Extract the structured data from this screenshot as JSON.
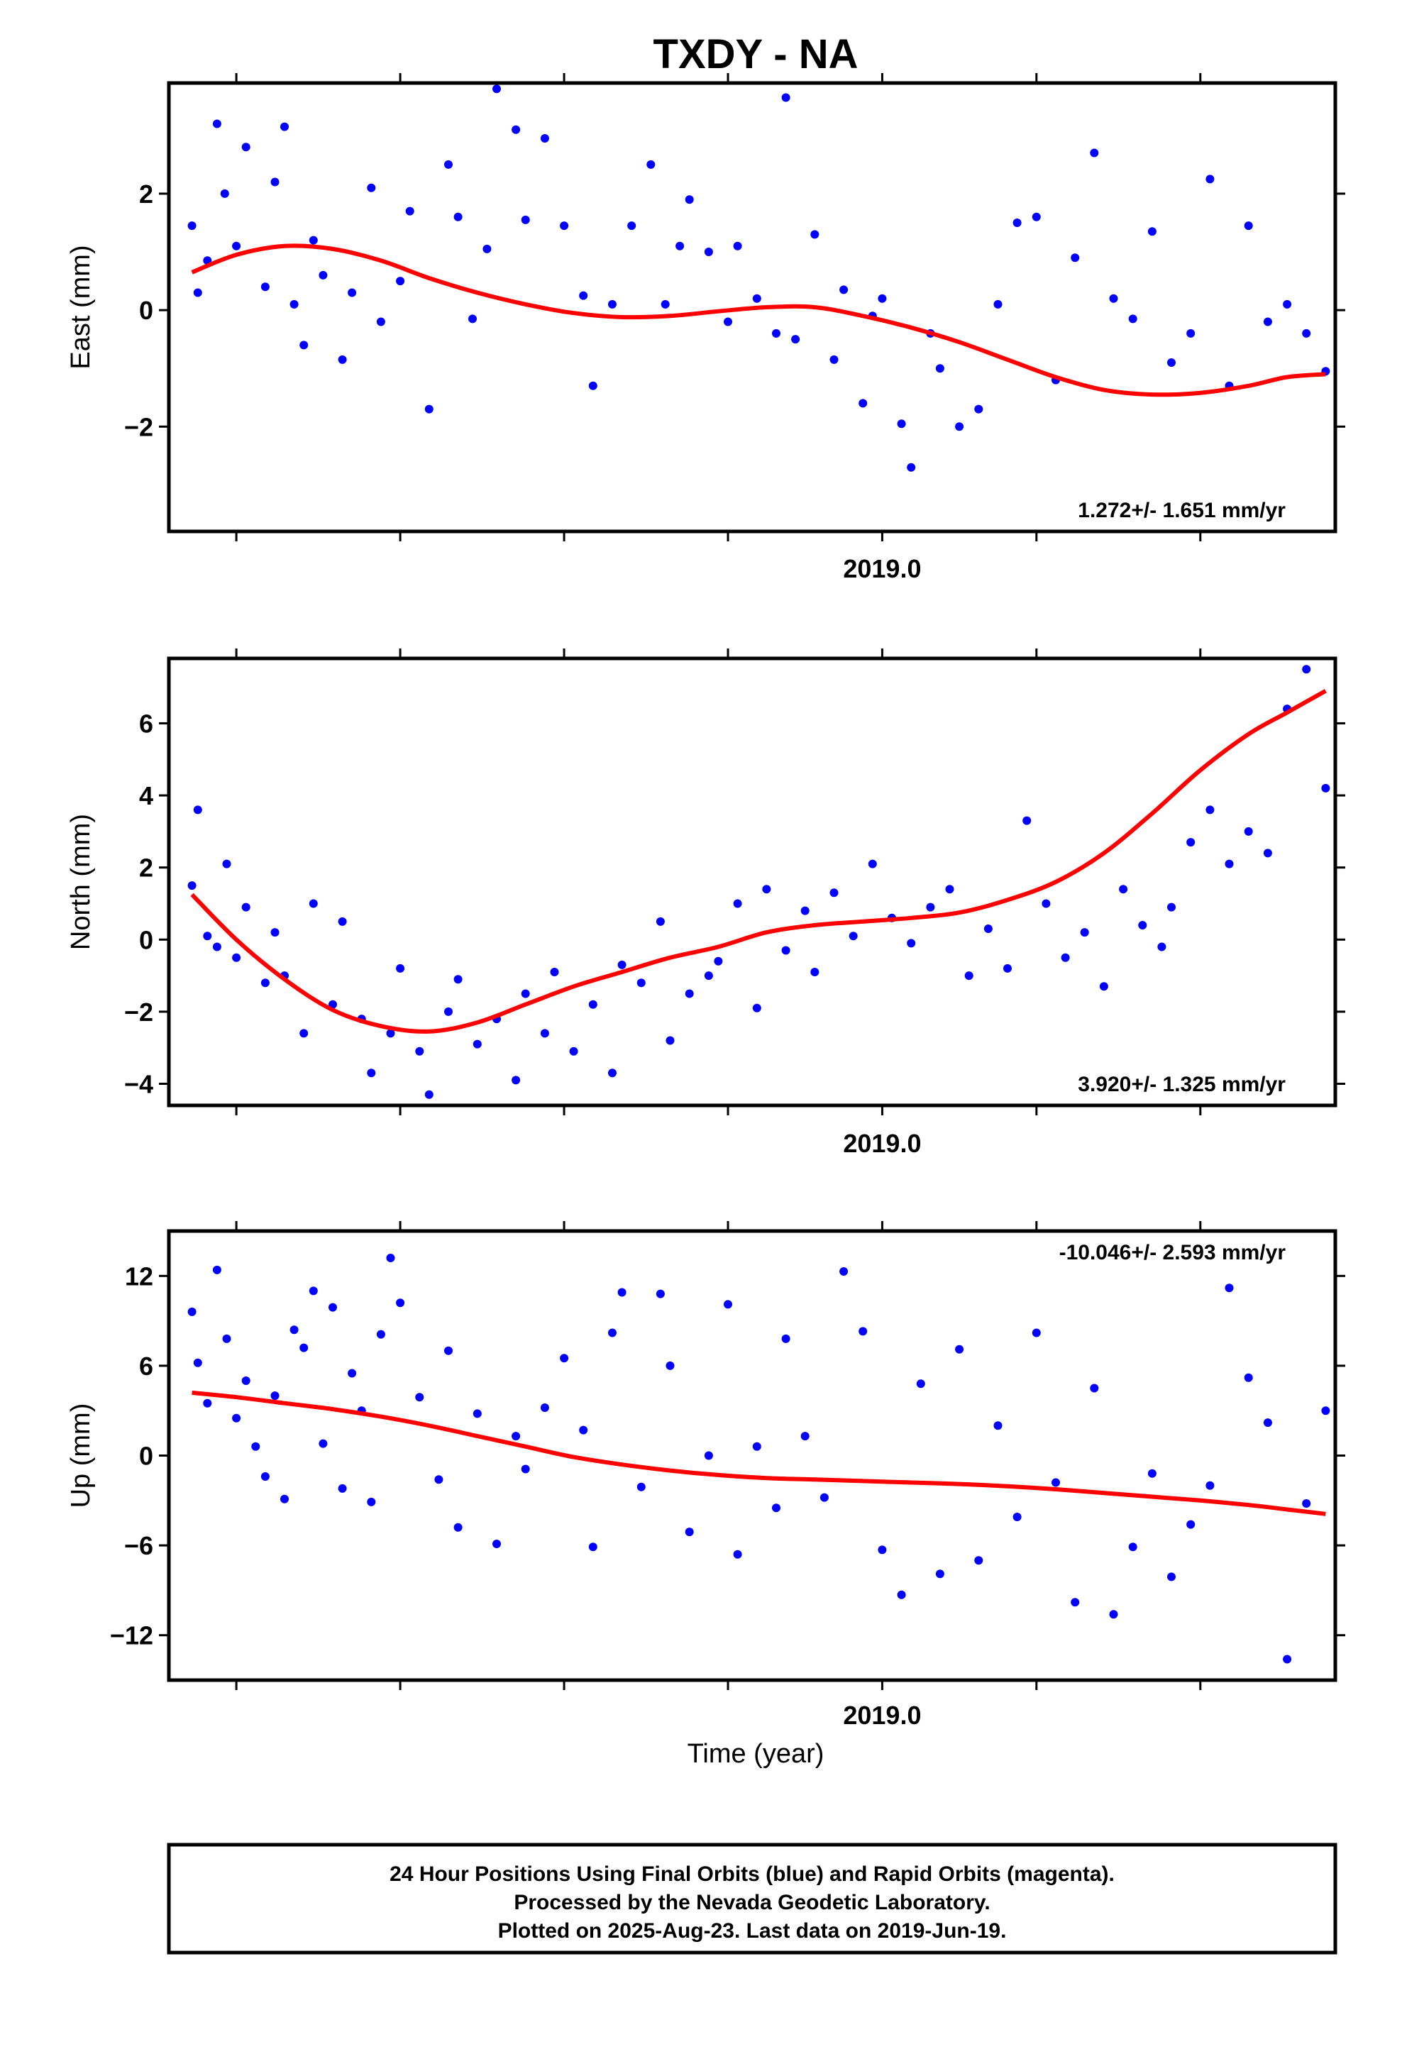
{
  "title": "TXDY - NA",
  "xlabel": "Time (year)",
  "footer": {
    "line1": "24 Hour Positions Using Final Orbits (blue) and Rapid Orbits (magenta).",
    "line2": "Processed by the Nevada Geodetic Laboratory.",
    "line3": "Plotted on 2025-Aug-23. Last data on 2019-Jun-19."
  },
  "colors": {
    "final_orbits": "#0000ff",
    "fit_curve": "#ff0000",
    "frame": "#000000"
  },
  "chart_data": [
    {
      "type": "scatter",
      "panel": "east",
      "ylabel": "East (mm)",
      "xlim": [
        2018.26,
        2019.47
      ],
      "ylim": [
        -3.8,
        3.9
      ],
      "xticks": [
        {
          "value": 2019.0,
          "label": "2019.0"
        }
      ],
      "yticks": [
        {
          "value": 2,
          "label": "2"
        },
        {
          "value": 0,
          "label": "0"
        },
        {
          "value": -2,
          "label": "−2"
        }
      ],
      "rate": "1.272+/- 1.651 mm/yr",
      "trend_nodes": {
        "x": [
          2018.284,
          2018.33,
          2018.38,
          2018.43,
          2018.48,
          2018.53,
          2018.58,
          2018.63,
          2018.68,
          2018.73,
          2018.78,
          2018.83,
          2018.88,
          2018.93,
          2018.98,
          2019.03,
          2019.08,
          2019.13,
          2019.18,
          2019.23,
          2019.28,
          2019.33,
          2019.38,
          2019.42,
          2019.46
        ],
        "y": [
          0.65,
          0.95,
          1.1,
          1.05,
          0.85,
          0.55,
          0.3,
          0.1,
          -0.05,
          -0.12,
          -0.1,
          -0.02,
          0.05,
          0.05,
          -0.1,
          -0.3,
          -0.55,
          -0.85,
          -1.15,
          -1.37,
          -1.45,
          -1.42,
          -1.3,
          -1.15,
          -1.1
        ]
      },
      "series": [
        {
          "x": [
            2018.284,
            2018.29,
            2018.3,
            2018.31,
            2018.318,
            2018.33,
            2018.34,
            2018.36,
            2018.37,
            2018.38,
            2018.39,
            2018.4,
            2018.41,
            2018.42,
            2018.44,
            2018.45,
            2018.47,
            2018.48,
            2018.5,
            2018.51,
            2018.53,
            2018.55,
            2018.56,
            2018.575,
            2018.59,
            2018.6,
            2018.62,
            2018.63,
            2018.65,
            2018.67,
            2018.69,
            2018.7,
            2018.72,
            2018.74,
            2018.76,
            2018.775,
            2018.79,
            2018.8,
            2018.82,
            2018.84,
            2018.85,
            2018.87,
            2018.89,
            2018.9,
            2018.91,
            2018.93,
            2018.95,
            2018.96,
            2018.98,
            2018.99,
            2019.0,
            2019.02,
            2019.03,
            2019.05,
            2019.06,
            2019.08,
            2019.1,
            2019.12,
            2019.14,
            2019.16,
            2019.18,
            2019.2,
            2019.22,
            2019.24,
            2019.26,
            2019.28,
            2019.3,
            2019.32,
            2019.34,
            2019.36,
            2019.38,
            2019.4,
            2019.42,
            2019.44,
            2019.46
          ],
          "y": [
            1.45,
            0.3,
            0.85,
            3.2,
            2.0,
            1.1,
            2.8,
            0.4,
            2.2,
            3.15,
            0.1,
            -0.6,
            1.2,
            0.6,
            -0.85,
            0.3,
            2.1,
            -0.2,
            0.5,
            1.7,
            -1.7,
            2.5,
            1.6,
            -0.15,
            1.05,
            3.8,
            3.1,
            1.55,
            2.95,
            1.45,
            0.25,
            -1.3,
            0.1,
            1.45,
            2.5,
            0.1,
            1.1,
            1.9,
            1.0,
            -0.2,
            1.1,
            0.2,
            -0.4,
            3.65,
            -0.5,
            1.3,
            -0.85,
            0.35,
            -1.6,
            -0.1,
            0.2,
            -1.95,
            -2.7,
            -0.4,
            -1.0,
            -2.0,
            -1.7,
            0.1,
            1.5,
            1.6,
            -1.2,
            0.9,
            2.7,
            0.2,
            -0.15,
            1.35,
            -0.9,
            -0.4,
            2.25,
            -1.3,
            1.45,
            -0.2,
            0.1,
            -0.4,
            -1.05
          ]
        }
      ]
    },
    {
      "type": "scatter",
      "panel": "north",
      "ylabel": "North (mm)",
      "xlim": [
        2018.26,
        2019.47
      ],
      "ylim": [
        -4.6,
        7.8
      ],
      "xticks": [
        {
          "value": 2019.0,
          "label": "2019.0"
        }
      ],
      "yticks": [
        {
          "value": 6,
          "label": "6"
        },
        {
          "value": 4,
          "label": "4"
        },
        {
          "value": 2,
          "label": "2"
        },
        {
          "value": 0,
          "label": "0"
        },
        {
          "value": -2,
          "label": "−2"
        },
        {
          "value": -4,
          "label": "−4"
        }
      ],
      "rate": "3.920+/- 1.325 mm/yr",
      "trend_nodes": {
        "x": [
          2018.284,
          2018.33,
          2018.38,
          2018.43,
          2018.48,
          2018.53,
          2018.58,
          2018.63,
          2018.68,
          2018.73,
          2018.78,
          2018.83,
          2018.88,
          2018.93,
          2018.98,
          2019.03,
          2019.08,
          2019.13,
          2019.18,
          2019.23,
          2019.28,
          2019.33,
          2019.38,
          2019.42,
          2019.46
        ],
        "y": [
          1.25,
          0.0,
          -1.1,
          -1.95,
          -2.4,
          -2.55,
          -2.3,
          -1.8,
          -1.3,
          -0.9,
          -0.5,
          -0.2,
          0.2,
          0.4,
          0.5,
          0.6,
          0.75,
          1.1,
          1.6,
          2.4,
          3.5,
          4.7,
          5.7,
          6.3,
          6.9
        ]
      },
      "series": [
        {
          "x": [
            2018.284,
            2018.29,
            2018.3,
            2018.31,
            2018.32,
            2018.33,
            2018.34,
            2018.36,
            2018.37,
            2018.38,
            2018.4,
            2018.41,
            2018.43,
            2018.44,
            2018.46,
            2018.47,
            2018.49,
            2018.5,
            2018.52,
            2018.53,
            2018.55,
            2018.56,
            2018.58,
            2018.6,
            2018.62,
            2018.63,
            2018.65,
            2018.66,
            2018.68,
            2018.7,
            2018.72,
            2018.73,
            2018.75,
            2018.77,
            2018.78,
            2018.8,
            2018.82,
            2018.83,
            2018.85,
            2018.87,
            2018.88,
            2018.9,
            2018.92,
            2018.93,
            2018.95,
            2018.97,
            2018.99,
            2019.01,
            2019.03,
            2019.05,
            2019.07,
            2019.09,
            2019.11,
            2019.13,
            2019.15,
            2019.17,
            2019.19,
            2019.21,
            2019.23,
            2019.25,
            2019.27,
            2019.29,
            2019.3,
            2019.32,
            2019.34,
            2019.36,
            2019.38,
            2019.4,
            2019.42,
            2019.44,
            2019.46
          ],
          "y": [
            1.5,
            3.6,
            0.1,
            -0.2,
            2.1,
            -0.5,
            0.9,
            -1.2,
            0.2,
            -1.0,
            -2.6,
            1.0,
            -1.8,
            0.5,
            -2.2,
            -3.7,
            -2.6,
            -0.8,
            -3.1,
            -4.3,
            -2.0,
            -1.1,
            -2.9,
            -2.2,
            -3.9,
            -1.5,
            -2.6,
            -0.9,
            -3.1,
            -1.8,
            -3.7,
            -0.7,
            -1.2,
            0.5,
            -2.8,
            -1.5,
            -1.0,
            -0.6,
            1.0,
            -1.9,
            1.4,
            -0.3,
            0.8,
            -0.9,
            1.3,
            0.1,
            2.1,
            0.6,
            -0.1,
            0.9,
            1.4,
            -1.0,
            0.3,
            -0.8,
            3.3,
            1.0,
            -0.5,
            0.2,
            -1.3,
            1.4,
            0.4,
            -0.2,
            0.9,
            2.7,
            3.6,
            2.1,
            3.0,
            2.4,
            6.4,
            7.5,
            4.2
          ]
        }
      ]
    },
    {
      "type": "scatter",
      "panel": "up",
      "ylabel": "Up (mm)",
      "xlim": [
        2018.26,
        2019.47
      ],
      "ylim": [
        -15,
        15
      ],
      "xticks": [
        {
          "value": 2019.0,
          "label": "2019.0"
        }
      ],
      "yticks": [
        {
          "value": 12,
          "label": "12"
        },
        {
          "value": 6,
          "label": "6"
        },
        {
          "value": 0,
          "label": "0"
        },
        {
          "value": -6,
          "label": "−6"
        },
        {
          "value": -12,
          "label": "−12"
        }
      ],
      "rate": "-10.046+/- 2.593 mm/yr",
      "trend_nodes": {
        "x": [
          2018.284,
          2018.33,
          2018.38,
          2018.43,
          2018.48,
          2018.53,
          2018.58,
          2018.63,
          2018.68,
          2018.73,
          2018.78,
          2018.83,
          2018.88,
          2018.93,
          2018.98,
          2019.03,
          2019.08,
          2019.13,
          2019.18,
          2019.23,
          2019.28,
          2019.33,
          2019.38,
          2019.42,
          2019.46
        ],
        "y": [
          4.2,
          3.9,
          3.5,
          3.1,
          2.6,
          2.0,
          1.3,
          0.6,
          -0.1,
          -0.6,
          -1.0,
          -1.3,
          -1.5,
          -1.6,
          -1.7,
          -1.8,
          -1.9,
          -2.05,
          -2.25,
          -2.5,
          -2.75,
          -3.0,
          -3.3,
          -3.6,
          -3.9
        ]
      },
      "series": [
        {
          "x": [
            2018.284,
            2018.29,
            2018.3,
            2018.31,
            2018.32,
            2018.33,
            2018.34,
            2018.35,
            2018.36,
            2018.37,
            2018.38,
            2018.39,
            2018.4,
            2018.41,
            2018.42,
            2018.43,
            2018.44,
            2018.45,
            2018.46,
            2018.47,
            2018.48,
            2018.49,
            2018.5,
            2018.52,
            2018.54,
            2018.55,
            2018.56,
            2018.58,
            2018.6,
            2018.62,
            2018.63,
            2018.65,
            2018.67,
            2018.69,
            2018.7,
            2018.72,
            2018.73,
            2018.75,
            2018.77,
            2018.78,
            2018.8,
            2018.82,
            2018.84,
            2018.85,
            2018.87,
            2018.89,
            2018.9,
            2018.92,
            2018.94,
            2018.96,
            2018.98,
            2019.0,
            2019.02,
            2019.04,
            2019.06,
            2019.08,
            2019.1,
            2019.12,
            2019.14,
            2019.16,
            2019.18,
            2019.2,
            2019.22,
            2019.24,
            2019.26,
            2019.28,
            2019.3,
            2019.32,
            2019.34,
            2019.36,
            2019.38,
            2019.4,
            2019.42,
            2019.44,
            2019.46
          ],
          "y": [
            9.6,
            6.2,
            3.5,
            12.4,
            7.8,
            2.5,
            5.0,
            0.6,
            -1.4,
            4.0,
            -2.9,
            8.4,
            7.2,
            11.0,
            0.8,
            9.9,
            -2.2,
            5.5,
            3.0,
            -3.1,
            8.1,
            13.2,
            10.2,
            3.9,
            -1.6,
            7.0,
            -4.8,
            2.8,
            -5.9,
            1.3,
            -0.9,
            3.2,
            6.5,
            1.7,
            -6.1,
            8.2,
            10.9,
            -2.1,
            10.8,
            6.0,
            -5.1,
            0.0,
            10.1,
            -6.6,
            0.6,
            -3.5,
            7.8,
            1.3,
            -2.8,
            12.3,
            8.3,
            -6.3,
            -9.3,
            4.8,
            -7.9,
            7.1,
            -7.0,
            2.0,
            -4.1,
            8.2,
            -1.8,
            -9.8,
            4.5,
            -10.6,
            -6.1,
            -1.2,
            -8.1,
            -4.6,
            -2.0,
            11.2,
            5.2,
            2.2,
            -13.6,
            -3.2,
            3.0
          ]
        }
      ]
    }
  ]
}
